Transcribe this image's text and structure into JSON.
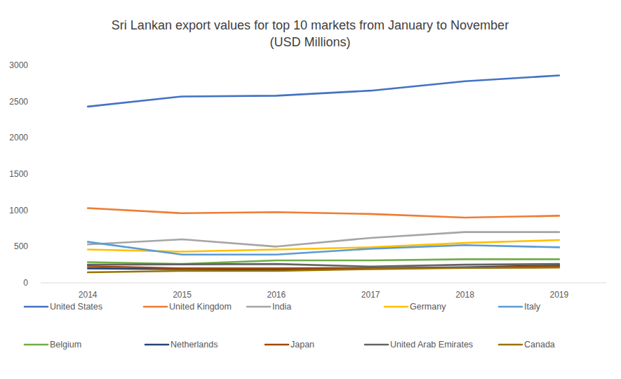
{
  "chart_data": {
    "type": "line",
    "title": "Sri Lankan export values for top 10 markets from January to November",
    "subtitle": "(USD Millions)",
    "categories": [
      "2014",
      "2015",
      "2016",
      "2017",
      "2018",
      "2019"
    ],
    "series": [
      {
        "name": "United States",
        "color": "#4472c4",
        "values": [
          2430,
          2570,
          2580,
          2650,
          2780,
          2860
        ]
      },
      {
        "name": "United Kingdom",
        "color": "#ed7d31",
        "values": [
          1030,
          960,
          975,
          950,
          900,
          925
        ]
      },
      {
        "name": "India",
        "color": "#a5a5a5",
        "values": [
          530,
          600,
          500,
          620,
          700,
          700
        ]
      },
      {
        "name": "Germany",
        "color": "#ffc000",
        "values": [
          460,
          430,
          460,
          490,
          550,
          590
        ]
      },
      {
        "name": "Italy",
        "color": "#5b9bd5",
        "values": [
          565,
          390,
          390,
          470,
          520,
          490
        ]
      },
      {
        "name": "Belgium",
        "color": "#70ad47",
        "values": [
          285,
          260,
          310,
          310,
          325,
          325
        ]
      },
      {
        "name": "Netherlands",
        "color": "#264478",
        "values": [
          200,
          190,
          185,
          200,
          215,
          240
        ]
      },
      {
        "name": "Japan",
        "color": "#9e480e",
        "values": [
          230,
          200,
          200,
          205,
          205,
          230
        ]
      },
      {
        "name": "United Arab Emirates",
        "color": "#636363",
        "values": [
          250,
          255,
          260,
          225,
          250,
          260
        ]
      },
      {
        "name": "Canada",
        "color": "#997300",
        "values": [
          145,
          165,
          165,
          190,
          205,
          210
        ]
      }
    ],
    "ylim": [
      0,
      3000
    ],
    "yticks": [
      0,
      500,
      1000,
      1500,
      2000,
      2500,
      3000
    ],
    "grid": false,
    "legend": "bottom"
  }
}
